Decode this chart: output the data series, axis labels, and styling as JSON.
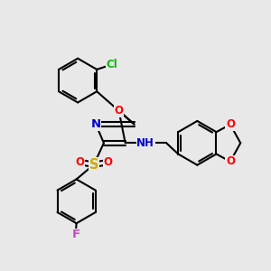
{
  "bg_color": "#e8e8e8",
  "atom_colors": {
    "C": "#000000",
    "N": "#0000cc",
    "O": "#ff0000",
    "S": "#ccaa00",
    "F": "#cc44cc",
    "Cl": "#00bb00",
    "H": "#000000"
  },
  "bond_color": "#000000",
  "bond_width": 1.5,
  "font_size": 8.5,
  "figsize": [
    3.0,
    3.0
  ],
  "dpi": 100
}
